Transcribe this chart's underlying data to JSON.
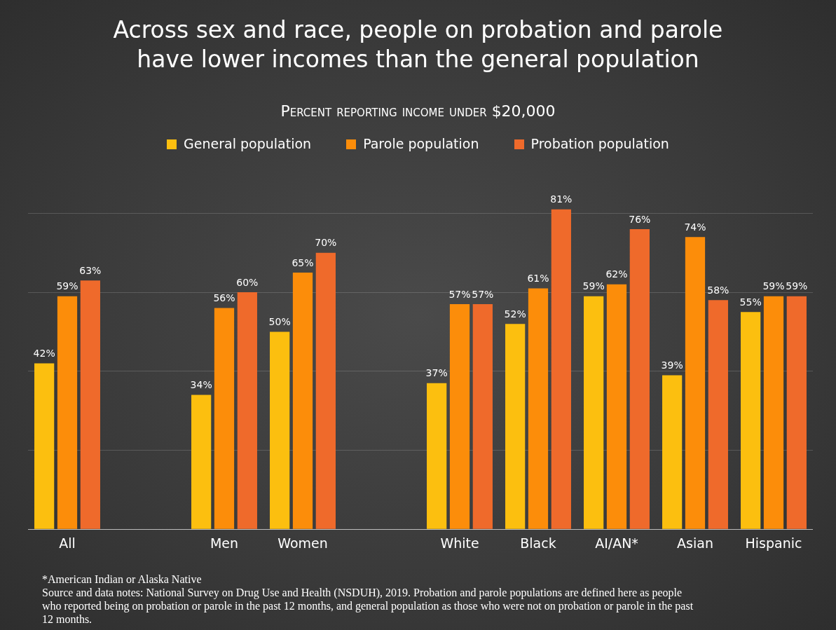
{
  "chart_data": {
    "type": "bar",
    "title": "Across sex and race, people on probation and parole\nhave lower incomes than the general population",
    "subtitle": "Percent reporting income under $20,000",
    "categories": [
      "All",
      null,
      "Men",
      "Women",
      null,
      "White",
      "Black",
      "AI/AN*",
      "Asian",
      "Hispanic"
    ],
    "legend": "top",
    "grid": "y",
    "tick_labels": "x",
    "yticks": [
      {
        "value": 0,
        "label": null
      },
      {
        "value": 20,
        "label": null
      },
      {
        "value": 40,
        "label": null
      },
      {
        "value": 60,
        "label": null
      },
      {
        "value": 80,
        "label": null
      }
    ],
    "series": [
      {
        "name": "General population",
        "color": "#fcbf0f",
        "values": [
          42,
          null,
          34,
          50,
          null,
          37,
          52,
          59,
          39,
          55
        ],
        "value_labels": [
          "42%",
          null,
          "34%",
          "50%",
          null,
          "37%",
          "52%",
          "59%",
          "39%",
          "55%"
        ]
      },
      {
        "name": "Parole population",
        "color": "#fc8d0a",
        "values": [
          59,
          null,
          56,
          65,
          null,
          57,
          61,
          62,
          74,
          59
        ],
        "value_labels": [
          "59%",
          null,
          "56%",
          "65%",
          null,
          "57%",
          "61%",
          "62%",
          "74%",
          "59%"
        ]
      },
      {
        "name": "Probation population",
        "color": "#ef6a2b",
        "values": [
          63,
          null,
          60,
          70,
          null,
          57,
          81,
          76,
          58,
          59
        ],
        "value_labels": [
          "63%",
          null,
          "60%",
          "70%",
          null,
          "57%",
          "81%",
          "76%",
          "58%",
          "59%"
        ]
      }
    ],
    "annotations": [
      "*American Indian or Alaska Native",
      "Source and data notes: National Survey on Drug Use and Health (NSDUH), 2019. Probation and parole populations are defined here as people who reported being on probation or parole in the past 12 months, and general population as those who were not on probation or parole in the past 12 months."
    ]
  }
}
